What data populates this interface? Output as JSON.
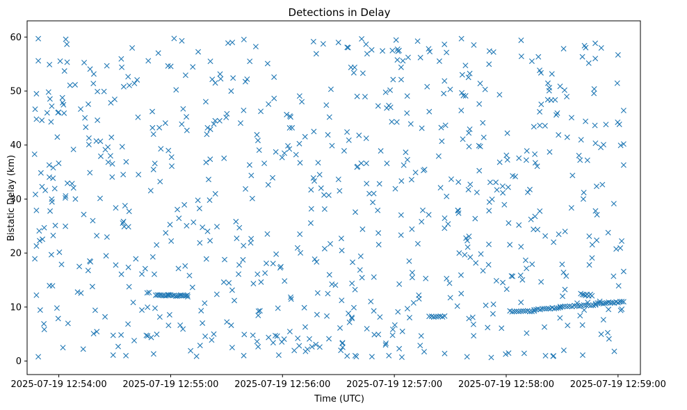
{
  "chart_data": {
    "type": "scatter",
    "title": "Detections in Delay",
    "xlabel": "Time (UTC)",
    "ylabel": "Bistatic Delay (km)",
    "marker": "x",
    "color": "#1f77b4",
    "x_unit": "seconds since 2025-07-19 12:54:00",
    "xlim": [
      -17,
      312
    ],
    "ylim": [
      -2.5,
      63
    ],
    "x_ticks": [
      {
        "value": 0,
        "label": "2025-07-19 12:54:00"
      },
      {
        "value": 60,
        "label": "2025-07-19 12:55:00"
      },
      {
        "value": 120,
        "label": "2025-07-19 12:56:00"
      },
      {
        "value": 180,
        "label": "2025-07-19 12:57:00"
      },
      {
        "value": 240,
        "label": "2025-07-19 12:58:00"
      },
      {
        "value": 300,
        "label": "2025-07-19 12:59:00"
      }
    ],
    "y_ticks": [
      {
        "value": 0,
        "label": "0"
      },
      {
        "value": 10,
        "label": "10"
      },
      {
        "value": 20,
        "label": "20"
      },
      {
        "value": 30,
        "label": "30"
      },
      {
        "value": 40,
        "label": "40"
      },
      {
        "value": 50,
        "label": "50"
      },
      {
        "value": 60,
        "label": "60"
      }
    ],
    "series": [
      {
        "name": "detections",
        "tracks": [
          {
            "x0": 52,
            "y0": 12.2,
            "x1": 69,
            "y1": 12.1,
            "n": 20,
            "jitter": 0.12
          },
          {
            "x0": 242,
            "y0": 9.2,
            "x1": 255,
            "y1": 9.3,
            "n": 12,
            "jitter": 0.12
          },
          {
            "x0": 255,
            "y0": 9.5,
            "x1": 269,
            "y1": 9.9,
            "n": 14,
            "jitter": 0.12
          },
          {
            "x0": 269,
            "y0": 10.1,
            "x1": 288,
            "y1": 10.4,
            "n": 16,
            "jitter": 0.12
          },
          {
            "x0": 280,
            "y0": 12.3,
            "x1": 286,
            "y1": 12.1,
            "n": 8,
            "jitter": 0.2
          },
          {
            "x0": 288,
            "y0": 10.6,
            "x1": 303,
            "y1": 11.0,
            "n": 16,
            "jitter": 0.12
          },
          {
            "x0": 200,
            "y0": 8.2,
            "x1": 207,
            "y1": 8.3,
            "n": 7,
            "jitter": 0.15
          }
        ],
        "random_cloud": {
          "count": 720,
          "x_range": [
            -13,
            303
          ],
          "y_range": [
            0.5,
            59.8
          ],
          "seed": 20250719
        },
        "points": [
          [
            -13,
            38.3
          ],
          [
            -12,
            49.5
          ],
          [
            -12,
            44.8
          ],
          [
            -11,
            59.7
          ],
          [
            -11,
            55.6
          ],
          [
            -12,
            27.9
          ],
          [
            -12,
            21.3
          ],
          [
            -12,
            12.2
          ],
          [
            -11,
            0.8
          ],
          [
            -9,
            32.3
          ],
          [
            -5,
            54.9
          ],
          [
            -3,
            35.8
          ],
          [
            36,
            1.0
          ],
          [
            66,
            59.3
          ],
          [
            48,
            55.6
          ],
          [
            82,
            3.9
          ],
          [
            101,
            52.2
          ],
          [
            150,
            59.0
          ],
          [
            199,
            57.3
          ],
          [
            216,
            59.7
          ],
          [
            231,
            57.4
          ],
          [
            248,
            59.4
          ],
          [
            282,
            58.4
          ],
          [
            300,
            56.7
          ],
          [
            303,
            46.4
          ],
          [
            303,
            40.2
          ],
          [
            303,
            36.3
          ],
          [
            303,
            16.6
          ],
          [
            302,
            9.6
          ],
          [
            298,
            1.8
          ],
          [
            219,
            0.8
          ],
          [
            159,
            1.0
          ],
          [
            118,
            1.1
          ],
          [
            115,
            3.4
          ],
          [
            140,
            2.6
          ],
          [
            93,
            2.5
          ]
        ]
      }
    ]
  }
}
